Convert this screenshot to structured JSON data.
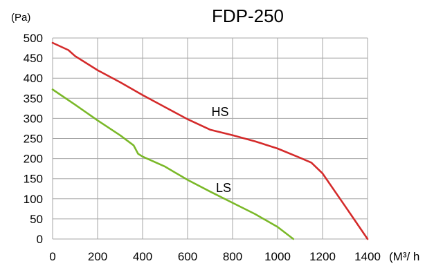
{
  "chart_data": {
    "type": "line",
    "title": "FDP-250",
    "ylabel": "(Pa)",
    "xlabel": "(M³/ h",
    "xlim": [
      0,
      1400
    ],
    "ylim": [
      0,
      500
    ],
    "x_ticks": [
      "0",
      "200",
      "400",
      "600",
      "800",
      "1000",
      "1200",
      "1400"
    ],
    "y_ticks": [
      "0",
      "50",
      "100",
      "150",
      "200",
      "250",
      "300",
      "350",
      "400",
      "450",
      "500"
    ],
    "grid": true,
    "series": [
      {
        "name": "HS",
        "color": "#d42a2a",
        "points": [
          [
            0,
            488
          ],
          [
            70,
            470
          ],
          [
            100,
            455
          ],
          [
            200,
            420
          ],
          [
            300,
            390
          ],
          [
            400,
            358
          ],
          [
            500,
            328
          ],
          [
            600,
            298
          ],
          [
            700,
            272
          ],
          [
            800,
            258
          ],
          [
            900,
            243
          ],
          [
            1000,
            225
          ],
          [
            1100,
            202
          ],
          [
            1150,
            190
          ],
          [
            1200,
            163
          ],
          [
            1300,
            82
          ],
          [
            1400,
            0
          ]
        ]
      },
      {
        "name": "LS",
        "color": "#7ab828",
        "points": [
          [
            0,
            372
          ],
          [
            100,
            334
          ],
          [
            200,
            295
          ],
          [
            300,
            258
          ],
          [
            360,
            233
          ],
          [
            380,
            212
          ],
          [
            400,
            205
          ],
          [
            500,
            180
          ],
          [
            600,
            147
          ],
          [
            700,
            118
          ],
          [
            800,
            90
          ],
          [
            900,
            62
          ],
          [
            1000,
            30
          ],
          [
            1070,
            0
          ]
        ]
      }
    ]
  }
}
